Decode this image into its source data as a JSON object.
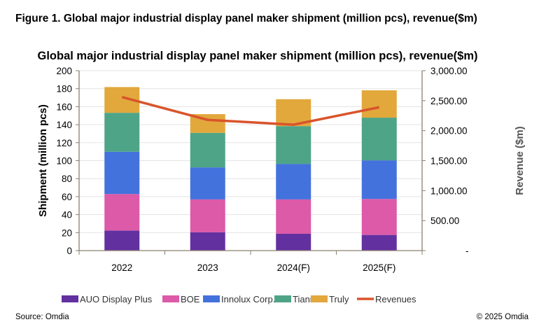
{
  "figure_title": "Figure 1. Global major industrial display panel maker shipment (million pcs), revenue($m)",
  "source": "Source: Omdia",
  "copyright": "©  2025 Omdia",
  "colors": {
    "AUO Display Plus": "#6330a0",
    "BOE": "#dc5aa8",
    "Innolux Corp.": "#4472dc",
    "Tianma": "#4ea487",
    "Truly": "#e2a83c",
    "Revenues": "#d9542c"
  },
  "chart_data": {
    "type": "bar",
    "stacked": true,
    "title": "Global major industrial display panel maker shipment (million pcs), revenue($m)",
    "categories": [
      "2022",
      "2023",
      "2024(F)",
      "2025(F)"
    ],
    "ylabel": "Shipment (million pcs)",
    "y2label": "Revenue ($m)",
    "ylim": [
      0,
      200
    ],
    "y2lim": [
      0,
      3000
    ],
    "yticks": [
      "0",
      "20",
      "40",
      "60",
      "80",
      "100",
      "120",
      "140",
      "160",
      "180",
      "200"
    ],
    "y2ticks": [
      "-",
      "500.00",
      "1,000.00",
      "1,500.00",
      "2,000.00",
      "2,500.00",
      "3,000.00"
    ],
    "grid": true,
    "legend": "bottom",
    "series": [
      {
        "name": "AUO Display Plus",
        "values": [
          22.3,
          20.3,
          18.7,
          17.4
        ]
      },
      {
        "name": "BOE",
        "values": [
          40.6,
          36.6,
          38.2,
          40.0
        ]
      },
      {
        "name": "Innolux Corp.",
        "values": [
          47.0,
          35.6,
          39.5,
          42.9
        ]
      },
      {
        "name": "Tianma",
        "values": [
          43.3,
          38.4,
          42.0,
          47.5
        ]
      },
      {
        "name": "Truly",
        "values": [
          28.6,
          20.8,
          29.9,
          30.4
        ]
      }
    ],
    "line_series": {
      "name": "Revenues",
      "axis": "right",
      "type": "line",
      "values": [
        2560,
        2180,
        2100,
        2390
      ]
    }
  }
}
